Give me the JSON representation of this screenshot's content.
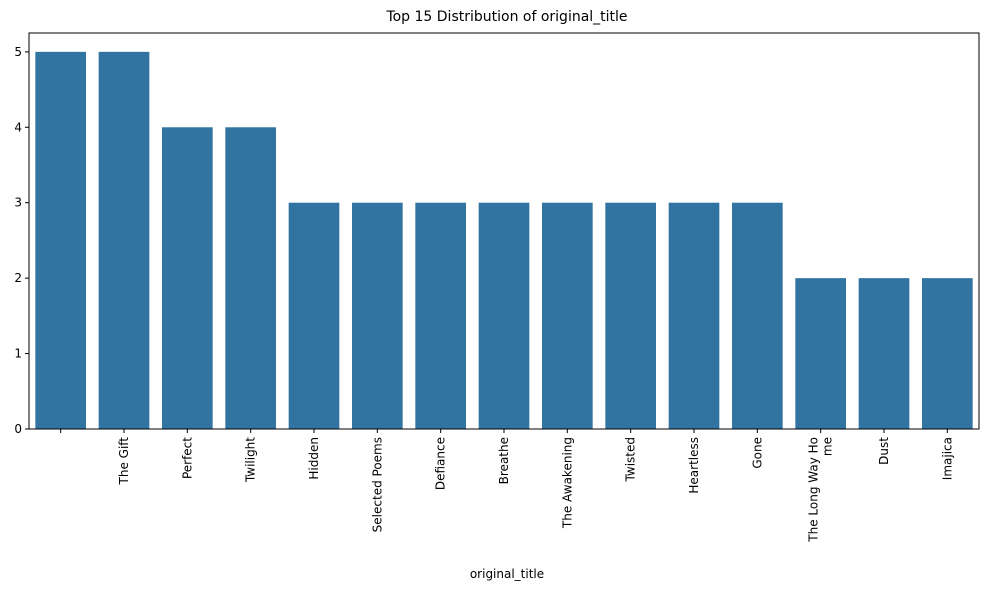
{
  "chart_data": {
    "type": "bar",
    "title": "Top 15 Distribution of original_title",
    "xlabel": "original_title",
    "ylabel": "",
    "categories": [
      "",
      "The Gift",
      "Perfect",
      "Twilight",
      "Hidden",
      "Selected Poems",
      "Defiance",
      "Breathe",
      "The Awakening",
      "Twisted",
      "Heartless",
      "Gone",
      "The Long Way Ho\nme",
      "Dust",
      "Imajica"
    ],
    "values": [
      5,
      5,
      4,
      4,
      3,
      3,
      3,
      3,
      3,
      3,
      3,
      3,
      2,
      2,
      2
    ],
    "ylim": [
      0,
      5.25
    ],
    "yticks": [
      0,
      1,
      2,
      3,
      4,
      5
    ],
    "bar_color": "#3274a1",
    "grid": false,
    "legend": false
  }
}
